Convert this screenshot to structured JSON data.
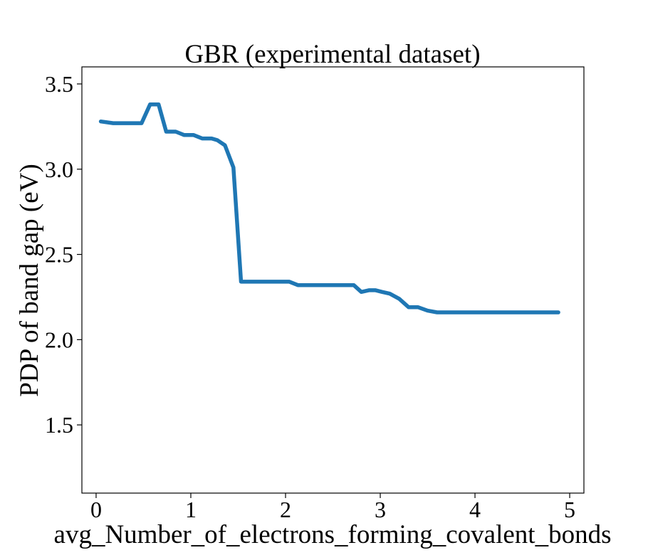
{
  "chart_data": {
    "type": "line",
    "title": "GBR (experimental dataset)",
    "xlabel": "avg_Number_of_electrons_forming_covalent_bonds",
    "ylabel": "PDP of band gap (eV)",
    "xlim": [
      -0.15,
      5.15
    ],
    "ylim": [
      1.1,
      3.6
    ],
    "xticks": [
      0,
      1,
      2,
      3,
      4,
      5
    ],
    "xtick_labels": [
      "0",
      "1",
      "2",
      "3",
      "4",
      "5"
    ],
    "yticks": [
      1.5,
      2.0,
      2.5,
      3.0,
      3.5
    ],
    "ytick_labels": [
      "1.5",
      "2.0",
      "2.5",
      "3.0",
      "3.5"
    ],
    "grid": false,
    "legend": "none",
    "series": [
      {
        "color": "#1f77b4",
        "x": [
          0.05,
          0.18,
          0.3,
          0.48,
          0.57,
          0.66,
          0.74,
          0.84,
          0.93,
          1.03,
          1.12,
          1.22,
          1.28,
          1.36,
          1.45,
          1.53,
          1.63,
          1.75,
          1.85,
          2.04,
          2.13,
          2.22,
          2.43,
          2.55,
          2.63,
          2.72,
          2.8,
          2.88,
          2.95,
          3.02,
          3.1,
          3.2,
          3.3,
          3.4,
          3.5,
          3.6,
          3.75,
          4.0,
          4.5,
          4.88
        ],
        "y": [
          3.28,
          3.27,
          3.27,
          3.27,
          3.38,
          3.38,
          3.22,
          3.22,
          3.2,
          3.2,
          3.18,
          3.18,
          3.17,
          3.14,
          3.01,
          2.34,
          2.34,
          2.34,
          2.34,
          2.34,
          2.32,
          2.32,
          2.32,
          2.32,
          2.32,
          2.32,
          2.28,
          2.29,
          2.29,
          2.28,
          2.27,
          2.24,
          2.19,
          2.19,
          2.17,
          2.16,
          2.16,
          2.16,
          2.16,
          2.16
        ]
      }
    ]
  }
}
